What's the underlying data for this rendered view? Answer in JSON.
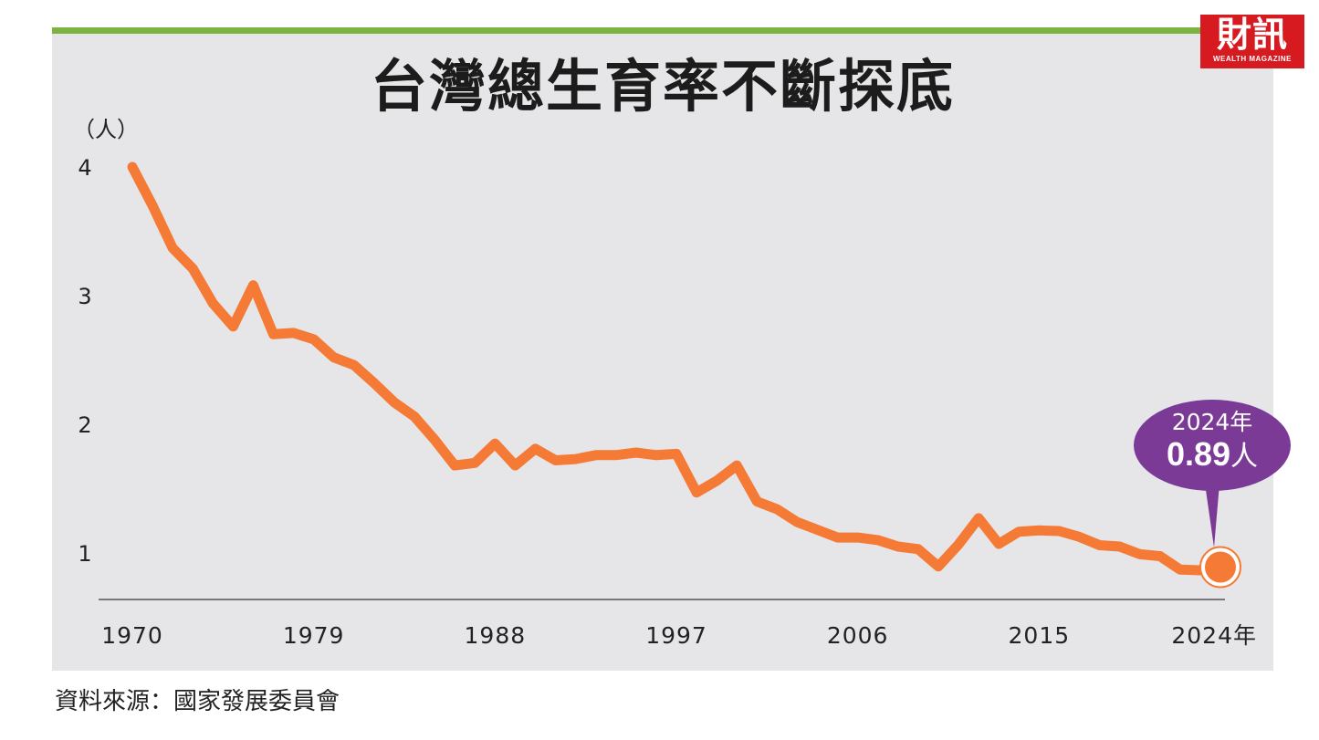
{
  "title": "台灣總生育率不斷探底",
  "logo": {
    "name": "財訊",
    "tagline": "WEALTH MAGAZINE"
  },
  "source": "資料來源：國家發展委員會",
  "colors": {
    "line": "#f47a36",
    "callout": "#7a3a96",
    "accent_bar": "#7cb342",
    "panel": "#e6e6e8",
    "logo": "#d71920"
  },
  "callout": {
    "year": "2024年",
    "value": "0.89",
    "unit": "人"
  },
  "chart_data": {
    "type": "line",
    "title": "台灣總生育率不斷探底",
    "ylabel": "（人）",
    "xlabel": "",
    "ylim": [
      0.7,
      4.0
    ],
    "xlim": [
      1970,
      2024
    ],
    "yticks": [
      "4",
      "3",
      "2",
      "1"
    ],
    "xticks": [
      "1970",
      "1979",
      "1988",
      "1997",
      "2006",
      "2015",
      "2024年"
    ],
    "grid": false,
    "x": [
      1970,
      1971,
      1972,
      1973,
      1974,
      1975,
      1976,
      1977,
      1978,
      1979,
      1980,
      1981,
      1982,
      1983,
      1984,
      1985,
      1986,
      1987,
      1988,
      1989,
      1990,
      1991,
      1992,
      1993,
      1994,
      1995,
      1996,
      1997,
      1998,
      1999,
      2000,
      2001,
      2002,
      2003,
      2004,
      2005,
      2006,
      2007,
      2008,
      2009,
      2010,
      2011,
      2012,
      2013,
      2014,
      2015,
      2016,
      2017,
      2018,
      2019,
      2020,
      2021,
      2022,
      2023,
      2024
    ],
    "y": [
      4.0,
      3.7,
      3.37,
      3.21,
      2.94,
      2.76,
      3.08,
      2.7,
      2.71,
      2.66,
      2.52,
      2.46,
      2.32,
      2.17,
      2.06,
      1.88,
      1.68,
      1.7,
      1.85,
      1.68,
      1.81,
      1.72,
      1.73,
      1.76,
      1.76,
      1.78,
      1.76,
      1.77,
      1.47,
      1.56,
      1.68,
      1.4,
      1.34,
      1.24,
      1.18,
      1.12,
      1.12,
      1.1,
      1.05,
      1.03,
      0.895,
      1.065,
      1.27,
      1.07,
      1.165,
      1.175,
      1.17,
      1.125,
      1.06,
      1.05,
      0.99,
      0.975,
      0.87,
      0.865,
      0.89
    ]
  }
}
